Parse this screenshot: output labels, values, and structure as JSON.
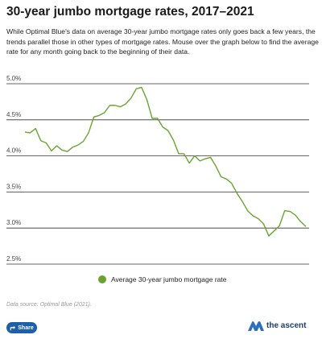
{
  "header": {
    "title": "30-year jumbo mortgage rates, 2017–2021",
    "subtitle": "While Optimal Blue's data on average 30-year jumbo mortgage rates only goes back a few years, the trends parallel those in other types of mortgage rates. Mouse over the graph below to find the average rate for any month going back to the beginning of their data."
  },
  "chart_data": {
    "type": "line",
    "title": "30-year jumbo mortgage rates, 2017–2021",
    "xlabel": "",
    "ylabel": "",
    "ylim": [
      2.5,
      5.0
    ],
    "yticks": [
      "2.5%",
      "3.0%",
      "3.5%",
      "4.0%",
      "4.5%",
      "5.0%"
    ],
    "grid": true,
    "legend_position": "bottom",
    "color": "#6aa332",
    "series": [
      {
        "name": "Average 30-year jumbo mortgage rate",
        "values": [
          4.33,
          4.32,
          4.38,
          4.21,
          4.18,
          4.07,
          4.14,
          4.08,
          4.06,
          4.12,
          4.15,
          4.2,
          4.32,
          4.54,
          4.56,
          4.6,
          4.7,
          4.7,
          4.68,
          4.72,
          4.8,
          4.93,
          4.95,
          4.78,
          4.52,
          4.52,
          4.4,
          4.35,
          4.22,
          4.03,
          4.03,
          3.9,
          4.0,
          3.93,
          3.96,
          3.98,
          3.86,
          3.71,
          3.68,
          3.62,
          3.48,
          3.37,
          3.24,
          3.17,
          3.13,
          3.06,
          2.89,
          2.96,
          3.03,
          3.24,
          3.23,
          3.18,
          3.09,
          3.02
        ]
      }
    ]
  },
  "source": "Data source: Optimal Blue (2021).",
  "share": {
    "label": "Share"
  },
  "brand": {
    "name": "the ascent"
  }
}
